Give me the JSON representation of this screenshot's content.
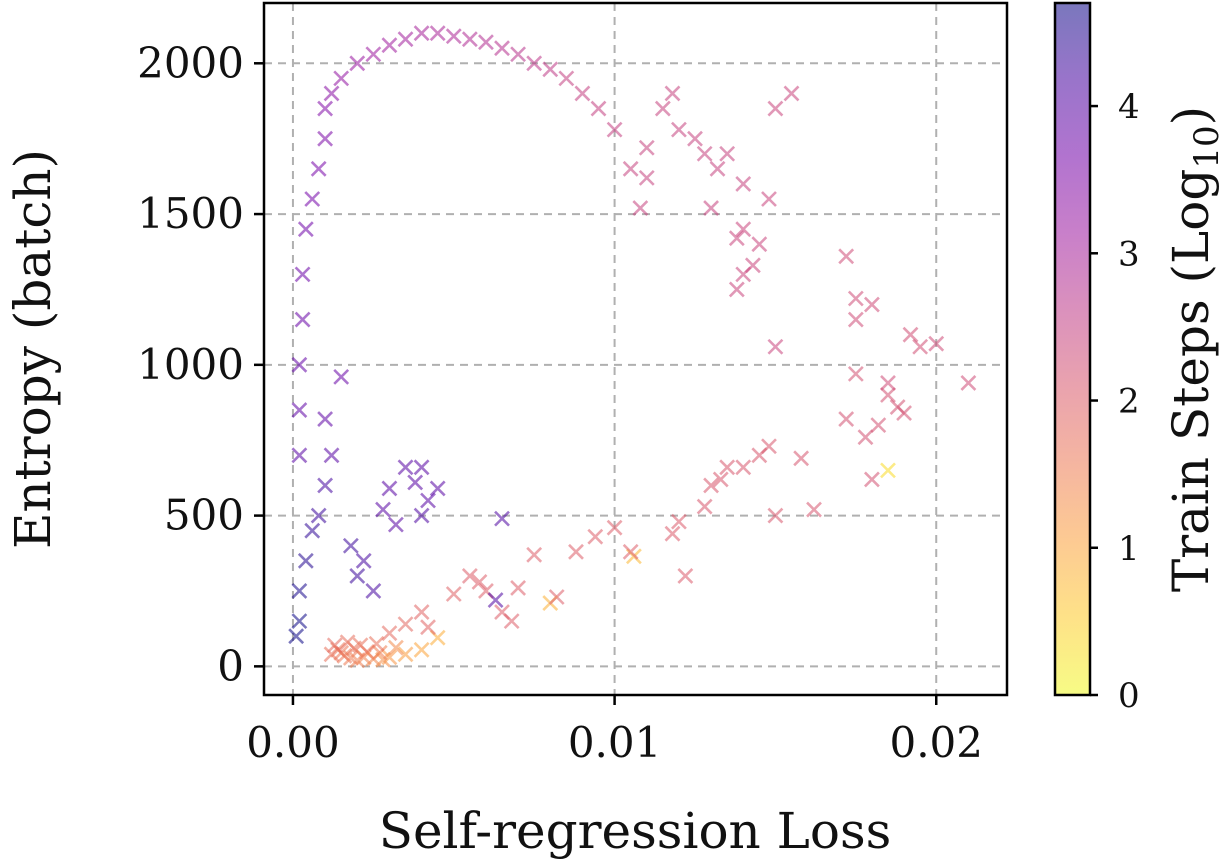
{
  "chart_data": {
    "type": "scatter",
    "marker": "x",
    "xlabel": "Self-regression Loss",
    "ylabel": "Entropy (batch)",
    "xlim": [
      -0.0009,
      0.0222
    ],
    "ylim": [
      -95,
      2200
    ],
    "xticks": [
      0.0,
      0.01,
      0.02
    ],
    "xtick_labels": [
      "0.00",
      "0.01",
      "0.02"
    ],
    "yticks": [
      0,
      500,
      1000,
      1500,
      2000
    ],
    "ytick_labels": [
      "0",
      "500",
      "1000",
      "1500",
      "2000"
    ],
    "grid": true,
    "colormap": "plasma_r",
    "colorbar": {
      "label": "Train Steps (Log",
      "label_subscript": "10",
      "label_close": ")",
      "range": [
        0,
        4.7
      ],
      "ticks": [
        0,
        1,
        2,
        3,
        4
      ],
      "tick_labels": [
        "0",
        "1",
        "2",
        "3",
        "4"
      ],
      "colors": [
        "#f0f921",
        "#fdca26",
        "#fb9f3a",
        "#ed7953",
        "#d8576b",
        "#bd3786",
        "#9c179e",
        "#7201a8",
        "#46039f",
        "#0d0887"
      ]
    },
    "series": [
      {
        "name": "Train Steps",
        "points": [
          [
            0.0185,
            650,
            0.35
          ],
          [
            0.0106,
            365,
            0.75
          ],
          [
            0.008,
            210,
            0.85
          ],
          [
            0.0045,
            95,
            0.9
          ],
          [
            0.004,
            55,
            1.0
          ],
          [
            0.0035,
            40,
            1.1
          ],
          [
            0.003,
            30,
            1.2
          ],
          [
            0.0028,
            22,
            1.3
          ],
          [
            0.0025,
            25,
            1.4
          ],
          [
            0.0022,
            30,
            1.45
          ],
          [
            0.002,
            20,
            1.5
          ],
          [
            0.0018,
            28,
            1.55
          ],
          [
            0.0016,
            35,
            1.6
          ],
          [
            0.0015,
            45,
            1.6
          ],
          [
            0.0014,
            55,
            1.65
          ],
          [
            0.0019,
            60,
            1.65
          ],
          [
            0.0023,
            48,
            1.6
          ],
          [
            0.0027,
            45,
            1.5
          ],
          [
            0.0032,
            62,
            1.35
          ],
          [
            0.0012,
            40,
            1.7
          ],
          [
            0.0021,
            70,
            1.7
          ],
          [
            0.0026,
            75,
            1.7
          ],
          [
            0.0017,
            80,
            1.75
          ],
          [
            0.0013,
            70,
            1.8
          ],
          [
            0.003,
            110,
            1.8
          ],
          [
            0.0035,
            140,
            1.85
          ],
          [
            0.004,
            180,
            1.9
          ],
          [
            0.0042,
            130,
            1.9
          ],
          [
            0.005,
            240,
            1.95
          ],
          [
            0.0055,
            300,
            2.0
          ],
          [
            0.0058,
            280,
            2.0
          ],
          [
            0.006,
            250,
            2.0
          ],
          [
            0.0065,
            180,
            2.0
          ],
          [
            0.0068,
            150,
            2.0
          ],
          [
            0.007,
            260,
            2.0
          ],
          [
            0.0075,
            370,
            2.0
          ],
          [
            0.0082,
            230,
            2.0
          ],
          [
            0.0088,
            380,
            2.0
          ],
          [
            0.0094,
            430,
            2.0
          ],
          [
            0.01,
            460,
            2.0
          ],
          [
            0.0105,
            380,
            2.0
          ],
          [
            0.0118,
            440,
            2.05
          ],
          [
            0.012,
            480,
            2.05
          ],
          [
            0.0122,
            300,
            2.05
          ],
          [
            0.0128,
            530,
            2.1
          ],
          [
            0.013,
            600,
            2.1
          ],
          [
            0.0133,
            620,
            2.1
          ],
          [
            0.0135,
            660,
            2.1
          ],
          [
            0.014,
            660,
            2.1
          ],
          [
            0.0145,
            700,
            2.1
          ],
          [
            0.0148,
            730,
            2.1
          ],
          [
            0.015,
            500,
            2.1
          ],
          [
            0.0158,
            690,
            2.15
          ],
          [
            0.0162,
            520,
            2.15
          ],
          [
            0.0172,
            820,
            2.2
          ],
          [
            0.0175,
            970,
            2.2
          ],
          [
            0.0178,
            760,
            2.2
          ],
          [
            0.018,
            620,
            2.2
          ],
          [
            0.0182,
            800,
            2.2
          ],
          [
            0.0185,
            900,
            2.2
          ],
          [
            0.0188,
            860,
            2.2
          ],
          [
            0.019,
            840,
            2.2
          ],
          [
            0.0192,
            1100,
            2.25
          ],
          [
            0.0195,
            1060,
            2.25
          ],
          [
            0.02,
            1070,
            2.3
          ],
          [
            0.021,
            940,
            2.3
          ],
          [
            0.0185,
            940,
            2.3
          ],
          [
            0.018,
            1200,
            2.3
          ],
          [
            0.0172,
            1360,
            2.3
          ],
          [
            0.0175,
            1220,
            2.3
          ],
          [
            0.0175,
            1150,
            2.3
          ],
          [
            0.0155,
            1900,
            2.4
          ],
          [
            0.015,
            1850,
            2.4
          ],
          [
            0.0148,
            1550,
            2.4
          ],
          [
            0.015,
            1060,
            2.4
          ],
          [
            0.014,
            1450,
            2.4
          ],
          [
            0.0138,
            1420,
            2.4
          ],
          [
            0.0145,
            1400,
            2.4
          ],
          [
            0.0143,
            1330,
            2.4
          ],
          [
            0.014,
            1300,
            2.4
          ],
          [
            0.0138,
            1250,
            2.4
          ],
          [
            0.0135,
            1700,
            2.45
          ],
          [
            0.0132,
            1650,
            2.45
          ],
          [
            0.0128,
            1700,
            2.45
          ],
          [
            0.013,
            1520,
            2.45
          ],
          [
            0.0125,
            1750,
            2.45
          ],
          [
            0.012,
            1780,
            2.45
          ],
          [
            0.0118,
            1900,
            2.45
          ],
          [
            0.0115,
            1850,
            2.45
          ],
          [
            0.011,
            1620,
            2.45
          ],
          [
            0.0108,
            1520,
            2.45
          ],
          [
            0.0105,
            1650,
            2.45
          ],
          [
            0.011,
            1720,
            2.45
          ],
          [
            0.014,
            1600,
            2.45
          ],
          [
            0.01,
            1780,
            2.5
          ],
          [
            0.0095,
            1850,
            2.5
          ],
          [
            0.009,
            1900,
            2.5
          ],
          [
            0.0085,
            1950,
            2.5
          ],
          [
            0.008,
            1980,
            2.6
          ],
          [
            0.0075,
            2000,
            2.65
          ],
          [
            0.007,
            2030,
            2.7
          ],
          [
            0.0065,
            2050,
            2.75
          ],
          [
            0.006,
            2070,
            2.8
          ],
          [
            0.0055,
            2080,
            2.85
          ],
          [
            0.005,
            2090,
            2.9
          ],
          [
            0.0045,
            2100,
            2.95
          ],
          [
            0.004,
            2100,
            3.0
          ],
          [
            0.0035,
            2080,
            3.05
          ],
          [
            0.003,
            2060,
            3.1
          ],
          [
            0.0025,
            2030,
            3.15
          ],
          [
            0.002,
            2000,
            3.2
          ],
          [
            0.0015,
            1950,
            3.3
          ],
          [
            0.0012,
            1900,
            3.4
          ],
          [
            0.001,
            1850,
            3.5
          ],
          [
            0.001,
            1750,
            3.55
          ],
          [
            0.0008,
            1650,
            3.6
          ],
          [
            0.0006,
            1550,
            3.65
          ],
          [
            0.0004,
            1450,
            3.7
          ],
          [
            0.0003,
            1300,
            3.75
          ],
          [
            0.0003,
            1150,
            3.8
          ],
          [
            0.0002,
            1000,
            3.85
          ],
          [
            0.0002,
            850,
            3.9
          ],
          [
            0.0002,
            700,
            4.0
          ],
          [
            0.0015,
            960,
            3.8
          ],
          [
            0.001,
            820,
            3.9
          ],
          [
            0.0012,
            700,
            4.0
          ],
          [
            0.0035,
            660,
            4.0
          ],
          [
            0.004,
            660,
            4.0
          ],
          [
            0.0038,
            610,
            4.0
          ],
          [
            0.0045,
            590,
            4.0
          ],
          [
            0.0042,
            550,
            4.0
          ],
          [
            0.003,
            590,
            4.0
          ],
          [
            0.0028,
            520,
            4.0
          ],
          [
            0.0032,
            470,
            4.0
          ],
          [
            0.004,
            500,
            4.1
          ],
          [
            0.0065,
            490,
            4.1
          ],
          [
            0.0063,
            220,
            4.1
          ],
          [
            0.0025,
            250,
            4.2
          ],
          [
            0.0022,
            350,
            4.2
          ],
          [
            0.0018,
            400,
            4.3
          ],
          [
            0.002,
            300,
            4.3
          ],
          [
            0.001,
            600,
            4.2
          ],
          [
            0.0008,
            500,
            4.3
          ],
          [
            0.0006,
            450,
            4.4
          ],
          [
            0.0004,
            350,
            4.5
          ],
          [
            0.0002,
            250,
            4.6
          ],
          [
            0.0002,
            150,
            4.7
          ],
          [
            0.0001,
            100,
            4.7
          ]
        ]
      }
    ]
  }
}
